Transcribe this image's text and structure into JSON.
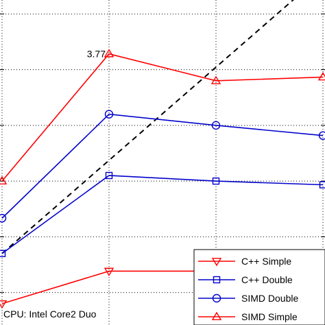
{
  "chart_data": {
    "type": "line",
    "x": [
      1,
      2,
      3,
      4
    ],
    "xlim": [
      1,
      4
    ],
    "ylim": [
      0.85,
      4.35
    ],
    "yticks": [
      1.2,
      1.8,
      2.4,
      3.0,
      3.6,
      4.2
    ],
    "grid": true,
    "legend_position": "bottom-right",
    "series": [
      {
        "name": "C++ Simple",
        "color": "#ff0000",
        "marker": "triangle-down",
        "values": [
          1.08,
          1.43,
          1.43,
          1.43
        ]
      },
      {
        "name": "C++ Double",
        "color": "#0000cc",
        "marker": "square",
        "values": [
          1.62,
          2.46,
          2.4,
          2.36
        ]
      },
      {
        "name": "SIMD Double",
        "color": "#0000cc",
        "marker": "circle",
        "values": [
          2.0,
          3.12,
          3.0,
          2.89
        ]
      },
      {
        "name": "SIMD Simple",
        "color": "#ff0000",
        "marker": "triangle-up",
        "values": [
          2.4,
          3.77,
          3.48,
          3.52
        ]
      }
    ],
    "reference_line": {
      "style": "dashed",
      "color": "#000000",
      "x": [
        1,
        4
      ],
      "y": [
        1.62,
        4.63
      ]
    },
    "annotations": [
      {
        "text": "3.77",
        "x": 2,
        "y": 3.77
      }
    ],
    "text_note": "CPU: Intel Core2 Duo"
  }
}
